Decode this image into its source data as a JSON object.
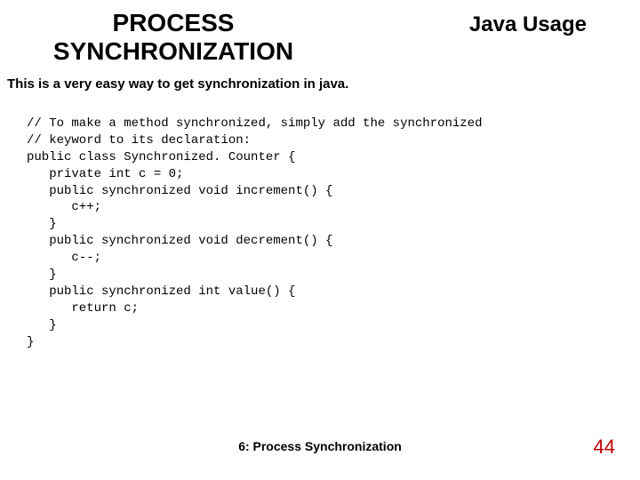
{
  "header": {
    "title_left": "PROCESS SYNCHRONIZATION",
    "title_right": "Java Usage"
  },
  "subtitle": "This is a very easy way to get synchronization in java.",
  "code": {
    "lines": [
      "// To make a method synchronized, simply add the synchronized",
      "// keyword to its declaration:",
      "public class Synchronized. Counter {",
      "   private int c = 0;",
      "   public synchronized void increment() {",
      "      c++;",
      "   }",
      "   public synchronized void decrement() {",
      "      c--;",
      "   }",
      "   public synchronized int value() {",
      "      return c;",
      "   }",
      "}"
    ]
  },
  "footer": {
    "center": "6: Process Synchronization",
    "page": "44"
  },
  "colors": {
    "text": "#000000",
    "page_number": "#c00000",
    "background": "#ffffff"
  }
}
